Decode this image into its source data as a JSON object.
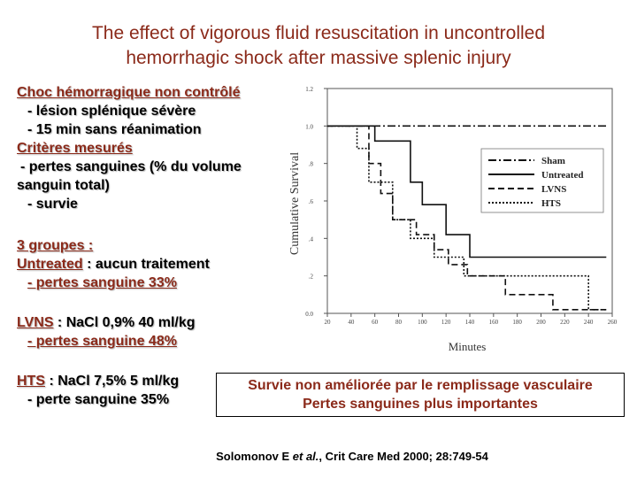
{
  "title": {
    "line1": "The effect of vigorous fluid resuscitation in uncontrolled",
    "line2": "hemorrhagic shock after massive splenic injury"
  },
  "model": {
    "heading": "Choc hémorragique non contrôlé",
    "item1": "- lésion splénique sévère",
    "item2": "- 15 min sans réanimation"
  },
  "criteria": {
    "heading": "Critères mesurés",
    "item1": "- pertes sanguines (% du volume",
    "item1b": "sanguin total)",
    "item2": "- survie"
  },
  "groups": {
    "heading": "3 groupes :",
    "untreated_name": "Untreated",
    "untreated_desc": " : aucun traitement",
    "untreated_loss": "- pertes sanguine 33%",
    "lvns_name": "LVNS",
    "lvns_desc": " : NaCl 0,9% 40 ml/kg",
    "lvns_loss": "- pertes sanguine 48%",
    "hts_name": "HTS",
    "hts_desc": " : NaCl 7,5% 5 ml/kg",
    "hts_loss": "- perte sanguine 35%"
  },
  "conclusion": {
    "line1": "Survie non améliorée par le remplissage vasculaire",
    "line2": "Pertes sanguines plus importantes"
  },
  "reference": {
    "authors": "Solomonov E ",
    "etal": "et al.",
    "citation": ", Crit Care Med 2000; 28:749-54"
  },
  "colors": {
    "title": "#8b2a1a",
    "highlight": "#8b2a1a"
  },
  "chart_data": {
    "type": "line",
    "ylabel": "Cumulative Survival",
    "xlabel": "Minutes",
    "xlim": [
      20,
      260
    ],
    "ylim": [
      0.0,
      1.2
    ],
    "x_ticks": [
      "20",
      "40",
      "60",
      "80",
      "100",
      "120",
      "140",
      "160",
      "180",
      "200",
      "220",
      "240",
      "260"
    ],
    "y_ticks": [
      "0.0",
      ".2",
      ".4",
      ".6",
      ".8",
      "1.0",
      "1.2"
    ],
    "series": [
      {
        "name": "Sham",
        "style": "dashdot",
        "x": [
          20,
          255
        ],
        "y": [
          1.0,
          1.0
        ]
      },
      {
        "name": "Untreated",
        "style": "solid",
        "x": [
          20,
          60,
          60,
          90,
          90,
          100,
          100,
          120,
          120,
          140,
          140,
          255
        ],
        "y": [
          1.0,
          1.0,
          0.92,
          0.92,
          0.7,
          0.7,
          0.58,
          0.58,
          0.42,
          0.42,
          0.3,
          0.3
        ]
      },
      {
        "name": "LVNS",
        "style": "dashed",
        "x": [
          20,
          55,
          55,
          65,
          65,
          75,
          75,
          95,
          95,
          110,
          110,
          122,
          122,
          138,
          138,
          170,
          170,
          210,
          210,
          255
        ],
        "y": [
          1.0,
          1.0,
          0.8,
          0.8,
          0.64,
          0.64,
          0.5,
          0.5,
          0.42,
          0.42,
          0.34,
          0.34,
          0.26,
          0.26,
          0.2,
          0.2,
          0.1,
          0.1,
          0.02,
          0.02
        ]
      },
      {
        "name": "HTS",
        "style": "dotted",
        "x": [
          20,
          45,
          45,
          55,
          55,
          75,
          75,
          90,
          90,
          110,
          110,
          135,
          135,
          240,
          240,
          255
        ],
        "y": [
          1.0,
          1.0,
          0.88,
          0.88,
          0.7,
          0.7,
          0.5,
          0.5,
          0.4,
          0.4,
          0.3,
          0.3,
          0.2,
          0.2,
          0.02,
          0.02
        ]
      }
    ]
  }
}
